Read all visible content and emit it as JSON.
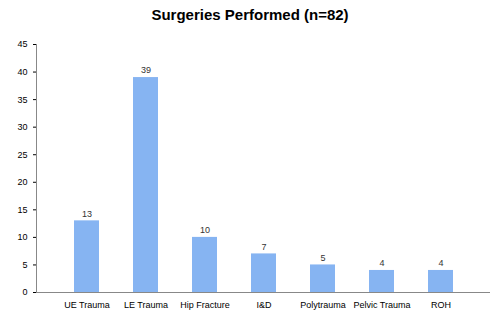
{
  "chart_data": {
    "type": "bar",
    "title": "Surgeries Performed (n=82)",
    "categories": [
      "UE Trauma",
      "LE Trauma",
      "Hip Fracture",
      "I&D",
      "Polytrauma",
      "Pelvic Trauma",
      "ROH"
    ],
    "values": [
      13,
      39,
      10,
      7,
      5,
      4,
      4
    ],
    "color": "#86b4f2",
    "ylim": [
      0,
      45
    ],
    "yticks": [
      0,
      5,
      10,
      15,
      20,
      25,
      30,
      35,
      40,
      45
    ],
    "grid": false,
    "data_labels": true
  }
}
